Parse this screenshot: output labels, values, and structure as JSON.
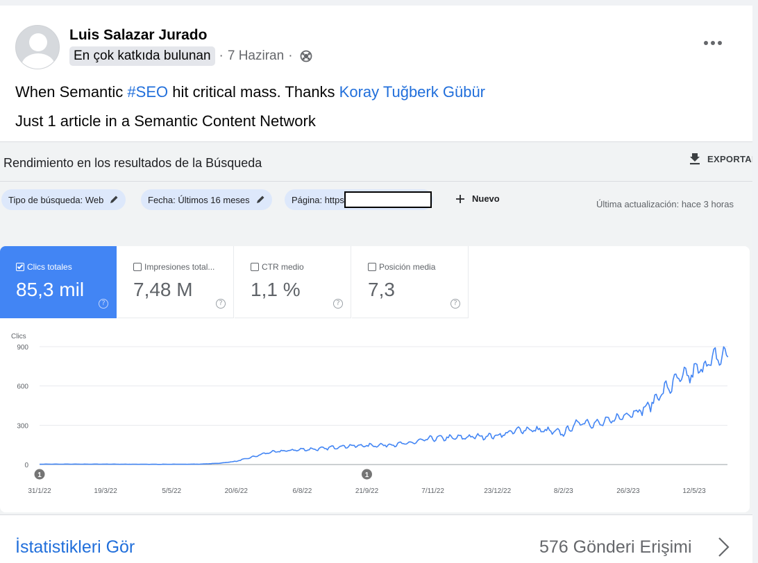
{
  "post": {
    "author": "Luis Salazar Jurado",
    "badge": "En çok katkıda bulunan",
    "separator": "·",
    "date": "7 Haziran",
    "line1_prefix": "When Semantic ",
    "hashtag": "#SEO",
    "line1_middle": " hit critical mass. Thanks ",
    "mention": "Koray Tuğberk Gübür",
    "line2": "Just 1 article in a Semantic Content Network"
  },
  "gsc": {
    "title": "Rendimiento en los resultados de la Búsqueda",
    "export_label": "EXPORTAR",
    "filters": [
      {
        "label": "Tipo de búsqueda: Web"
      },
      {
        "label": "Fecha: Últimos 16 meses"
      },
      {
        "label": "Página: https"
      }
    ],
    "new_label": "Nuevo",
    "last_update": "Última actualización: hace 3 horas",
    "metrics": [
      {
        "label": "Clics totales",
        "value": "85,3 mil",
        "checked": true
      },
      {
        "label": "Impresiones total...",
        "value": "7,48 M",
        "checked": false
      },
      {
        "label": "CTR medio",
        "value": "1,1 %",
        "checked": false
      },
      {
        "label": "Posición media",
        "value": "7,3",
        "checked": false
      }
    ]
  },
  "chart_data": {
    "type": "line",
    "ylabel": "Clics",
    "yticks": [
      "900",
      "600",
      "300",
      "0"
    ],
    "ylim": [
      0,
      900
    ],
    "x_tick_labels": [
      "31/1/22",
      "19/3/22",
      "5/5/22",
      "20/6/22",
      "6/8/22",
      "21/9/22",
      "7/11/22",
      "23/12/22",
      "8/2/23",
      "26/3/23",
      "12/5/23"
    ],
    "annotations": [
      {
        "date": "31/1/22",
        "label": "1"
      },
      {
        "date": "21/9/22",
        "label": "1"
      }
    ],
    "grid": true,
    "color": "#4285f4",
    "series": [
      {
        "name": "Clics totales",
        "points": [
          [
            "2022-01-31",
            3
          ],
          [
            "2022-02-20",
            3
          ],
          [
            "2022-03-19",
            3
          ],
          [
            "2022-04-10",
            2
          ],
          [
            "2022-05-05",
            2
          ],
          [
            "2022-05-25",
            3
          ],
          [
            "2022-06-08",
            10
          ],
          [
            "2022-06-20",
            25
          ],
          [
            "2022-07-01",
            55
          ],
          [
            "2022-07-12",
            90
          ],
          [
            "2022-07-25",
            105
          ],
          [
            "2022-08-06",
            115
          ],
          [
            "2022-08-20",
            120
          ],
          [
            "2022-09-03",
            140
          ],
          [
            "2022-09-21",
            145
          ],
          [
            "2022-10-05",
            150
          ],
          [
            "2022-10-20",
            160
          ],
          [
            "2022-11-07",
            200
          ],
          [
            "2022-11-25",
            205
          ],
          [
            "2022-12-10",
            215
          ],
          [
            "2022-12-23",
            220
          ],
          [
            "2023-01-10",
            270
          ],
          [
            "2023-01-25",
            260
          ],
          [
            "2023-02-08",
            240
          ],
          [
            "2023-02-20",
            330
          ],
          [
            "2023-03-05",
            310
          ],
          [
            "2023-03-15",
            340
          ],
          [
            "2023-03-26",
            390
          ],
          [
            "2023-04-08",
            430
          ],
          [
            "2023-04-20",
            560
          ],
          [
            "2023-05-01",
            650
          ],
          [
            "2023-05-12",
            700
          ],
          [
            "2023-05-22",
            780
          ],
          [
            "2023-06-01",
            830
          ],
          [
            "2023-06-05",
            820
          ]
        ]
      }
    ]
  },
  "footer": {
    "stats_link": "İstatistikleri Gör",
    "reach": "576 Gönderi Erişimi"
  }
}
